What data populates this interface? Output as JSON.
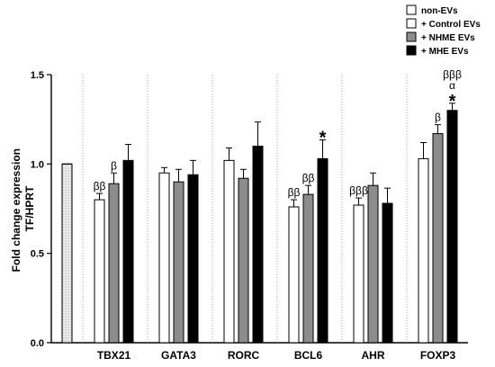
{
  "chart_data": {
    "type": "bar",
    "ylabel_lines": [
      "Fold change expression",
      "TF/HPRT"
    ],
    "ylim": [
      0,
      1.5
    ],
    "yticks": [
      "0.0",
      "0.5",
      "1.0",
      "1.5"
    ],
    "ytick_values": [
      0,
      0.5,
      1.0,
      1.5
    ],
    "grid": false,
    "legend_position": "top-right",
    "legend": [
      {
        "name": "non-EVs",
        "style": "white"
      },
      {
        "name": "+ Control EVs",
        "style": "white"
      },
      {
        "name": "+ NHME EVs",
        "style": "gray"
      },
      {
        "name": "+ MHE EVs",
        "style": "black"
      }
    ],
    "colors": {
      "white": "#ffffff",
      "gray": "#8c8c8c",
      "black": "#000000",
      "dotted": "#e4e4e4"
    },
    "reference_bar": {
      "value": 1.0,
      "style": "dotted"
    },
    "categories": [
      "TBX21",
      "GATA3",
      "RORC",
      "BCL6",
      "AHR",
      "FOXP3"
    ],
    "series": [
      {
        "name": "+ Control EVs",
        "style": "white",
        "values": [
          0.8,
          0.95,
          1.02,
          0.76,
          0.77,
          1.03
        ],
        "errors": [
          0.035,
          0.03,
          0.07,
          0.04,
          0.04,
          0.09
        ]
      },
      {
        "name": "+ NHME EVs",
        "style": "gray",
        "values": [
          0.89,
          0.9,
          0.92,
          0.83,
          0.88,
          1.17
        ],
        "errors": [
          0.06,
          0.07,
          0.05,
          0.05,
          0.07,
          0.05
        ]
      },
      {
        "name": "+ MHE EVs",
        "style": "black",
        "values": [
          1.02,
          0.94,
          1.1,
          1.03,
          0.78,
          1.3
        ],
        "errors": [
          0.09,
          0.08,
          0.135,
          0.105,
          0.085,
          0.04
        ]
      }
    ],
    "annotations": [
      {
        "category": 0,
        "series": 0,
        "lines": [
          "ββ"
        ]
      },
      {
        "category": 0,
        "series": 1,
        "lines": [
          "β"
        ]
      },
      {
        "category": 3,
        "series": 0,
        "lines": [
          "ββ"
        ]
      },
      {
        "category": 3,
        "series": 1,
        "lines": [
          "ββ"
        ]
      },
      {
        "category": 3,
        "series": 2,
        "lines": [
          "*"
        ]
      },
      {
        "category": 4,
        "series": 0,
        "lines": [
          "βββ"
        ]
      },
      {
        "category": 5,
        "series": 1,
        "lines": [
          "β"
        ]
      },
      {
        "category": 5,
        "series": 2,
        "lines": [
          "βββ",
          "α",
          "*"
        ]
      }
    ]
  }
}
